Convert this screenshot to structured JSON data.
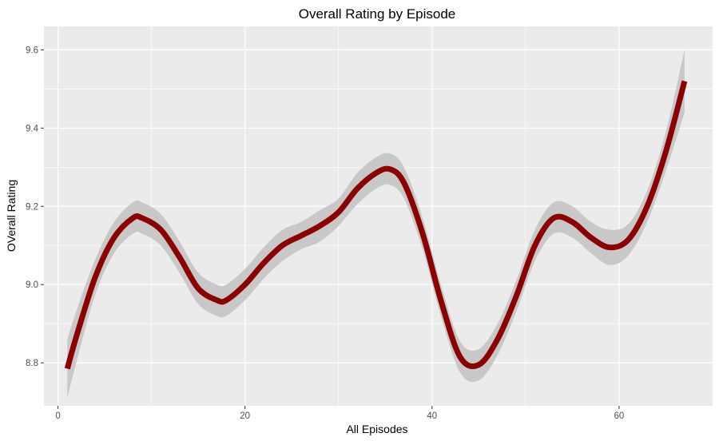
{
  "chart_data": {
    "type": "line",
    "title": "Overall Rating by Episode",
    "xlabel": "All Episodes",
    "ylabel": "OVerall Rating",
    "xlim": [
      -1.5,
      70
    ],
    "ylim": [
      8.69,
      9.66
    ],
    "x_ticks": [
      0,
      20,
      40,
      60
    ],
    "x_tick_labels": [
      "0",
      "20",
      "40",
      "60"
    ],
    "y_ticks": [
      8.8,
      9.0,
      9.2,
      9.4,
      9.6
    ],
    "y_tick_labels": [
      "8.8",
      "9.0",
      "9.2",
      "9.4",
      "9.6"
    ],
    "grid": true,
    "legend": "none",
    "colors": {
      "line": "#8b0000",
      "ribbon": "#c8c8c8",
      "panel": "#ebebeb",
      "grid": "#ffffff"
    },
    "series": [
      {
        "x": [
          1,
          2,
          4,
          6,
          8,
          9,
          11,
          13,
          15,
          17,
          18,
          20,
          22,
          24,
          26,
          28,
          30,
          32,
          34,
          35.5,
          37,
          39,
          41,
          43,
          45,
          47,
          49,
          51,
          53,
          55,
          57,
          59,
          61,
          63,
          65,
          67
        ],
        "y": [
          8.785,
          8.87,
          9.02,
          9.12,
          9.17,
          9.17,
          9.14,
          9.07,
          8.99,
          8.96,
          8.96,
          9.0,
          9.055,
          9.1,
          9.125,
          9.15,
          9.185,
          9.245,
          9.285,
          9.295,
          9.26,
          9.13,
          8.955,
          8.815,
          8.795,
          8.86,
          8.97,
          9.1,
          9.17,
          9.16,
          9.12,
          9.095,
          9.115,
          9.2,
          9.34,
          9.52
        ],
        "lower": [
          8.71,
          8.805,
          8.975,
          9.08,
          9.13,
          9.13,
          9.1,
          9.03,
          8.95,
          8.92,
          8.92,
          8.96,
          9.015,
          9.06,
          9.09,
          9.11,
          9.15,
          9.205,
          9.245,
          9.255,
          9.22,
          9.09,
          8.915,
          8.775,
          8.755,
          8.82,
          8.93,
          9.06,
          9.13,
          9.12,
          9.08,
          9.05,
          9.075,
          9.16,
          9.29,
          9.44
        ],
        "upper": [
          8.86,
          8.935,
          9.065,
          9.16,
          9.21,
          9.21,
          9.18,
          9.11,
          9.03,
          9.0,
          9.0,
          9.04,
          9.095,
          9.14,
          9.16,
          9.19,
          9.22,
          9.285,
          9.325,
          9.335,
          9.3,
          9.17,
          8.995,
          8.855,
          8.835,
          8.9,
          9.01,
          9.14,
          9.21,
          9.2,
          9.16,
          9.14,
          9.155,
          9.24,
          9.39,
          9.6
        ]
      }
    ]
  }
}
